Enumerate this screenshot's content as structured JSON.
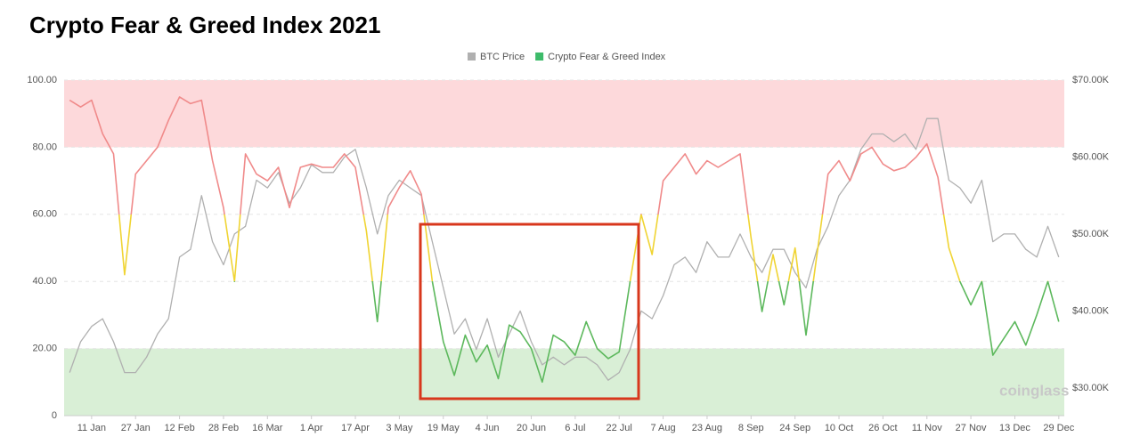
{
  "chart_data": {
    "type": "line",
    "title": "Crypto Fear & Greed Index 2021",
    "watermark": "coinglass",
    "categories": [
      null,
      null,
      "11 Jan",
      null,
      null,
      null,
      "27 Jan",
      null,
      null,
      null,
      "12 Feb",
      null,
      null,
      null,
      "28 Feb",
      null,
      null,
      null,
      "16 Mar",
      null,
      null,
      null,
      "1 Apr",
      null,
      null,
      null,
      "17 Apr",
      null,
      null,
      null,
      "3 May",
      null,
      null,
      null,
      "19 May",
      null,
      null,
      null,
      "4 Jun",
      null,
      null,
      null,
      "20 Jun",
      null,
      null,
      null,
      "6 Jul",
      null,
      null,
      null,
      "22 Jul",
      null,
      null,
      null,
      "7 Aug",
      null,
      null,
      null,
      "23 Aug",
      null,
      null,
      null,
      "8 Sep",
      null,
      null,
      null,
      "24 Sep",
      null,
      null,
      null,
      "10 Oct",
      null,
      null,
      null,
      "26 Oct",
      null,
      null,
      null,
      "11 Nov",
      null,
      null,
      null,
      "27 Nov",
      null,
      null,
      null,
      "13 Dec",
      null,
      null,
      null,
      "29 Dec"
    ],
    "series": [
      {
        "name": "BTC Price",
        "color": "#b0b0b0",
        "axis": "y2",
        "values": [
          32000,
          36000,
          38000,
          39000,
          36000,
          32000,
          32000,
          34000,
          37000,
          39000,
          47000,
          48000,
          55000,
          49000,
          46000,
          50000,
          51000,
          57000,
          56000,
          58000,
          54000,
          56000,
          59000,
          58000,
          58000,
          60000,
          61000,
          56000,
          50000,
          55000,
          57000,
          56000,
          55000,
          49000,
          43000,
          37000,
          39000,
          35000,
          39000,
          34000,
          37000,
          40000,
          36000,
          33000,
          34000,
          33000,
          34000,
          34000,
          33000,
          31000,
          32000,
          35000,
          40000,
          39000,
          42000,
          46000,
          47000,
          45000,
          49000,
          47000,
          47000,
          50000,
          47000,
          45000,
          48000,
          48000,
          45000,
          43000,
          48000,
          51000,
          55000,
          57000,
          61000,
          63000,
          63000,
          62000,
          63000,
          61000,
          65000,
          65000,
          57000,
          56000,
          54000,
          57000,
          49000,
          50000,
          50000,
          48000,
          47000,
          51000,
          47000
        ]
      },
      {
        "name": "Crypto Fear & Greed Index",
        "color": "#3dbb6a",
        "values": [
          94,
          92,
          94,
          84,
          78,
          42,
          72,
          76,
          80,
          88,
          95,
          93,
          94,
          76,
          62,
          40,
          78,
          72,
          70,
          74,
          62,
          74,
          75,
          74,
          74,
          78,
          74,
          55,
          28,
          62,
          68,
          73,
          66,
          40,
          22,
          12,
          24,
          16,
          21,
          11,
          27,
          25,
          20,
          10,
          24,
          22,
          18,
          28,
          20,
          17,
          19,
          40,
          60,
          48,
          70,
          74,
          78,
          72,
          76,
          74,
          76,
          78,
          53,
          31,
          48,
          33,
          50,
          24,
          48,
          72,
          76,
          70,
          78,
          80,
          75,
          73,
          74,
          77,
          81,
          71,
          50,
          40,
          33,
          40,
          18,
          23,
          28,
          21,
          30,
          40,
          28
        ],
        "zones": [
          {
            "above": 60,
            "color": "#f08a8a"
          },
          {
            "above": 40,
            "color": "#f0d433"
          },
          {
            "above": 0,
            "color": "#5cb85c"
          }
        ]
      }
    ],
    "bands": [
      {
        "from": 80,
        "to": 100,
        "color": "#fdd9db"
      },
      {
        "from": 0,
        "to": 20,
        "color": "#d9efd6"
      }
    ],
    "ylim": [
      0,
      100
    ],
    "yticks": [
      {
        "value": 0,
        "label": "0"
      },
      {
        "value": 20,
        "label": "20.00"
      },
      {
        "value": 40,
        "label": "40.00"
      },
      {
        "value": 60,
        "label": "60.00"
      },
      {
        "value": 80,
        "label": "80.00"
      },
      {
        "value": 100,
        "label": "100.00"
      }
    ],
    "y2lim": [
      26400,
      70000
    ],
    "y2ticks": [
      {
        "value": 30000,
        "label": "$30.00K"
      },
      {
        "value": 40000,
        "label": "$40.00K"
      },
      {
        "value": 50000,
        "label": "$50.00K"
      },
      {
        "value": 60000,
        "label": "$60.00K"
      },
      {
        "value": 70000,
        "label": "$70.00K"
      }
    ],
    "grid": true,
    "legend": "top"
  }
}
